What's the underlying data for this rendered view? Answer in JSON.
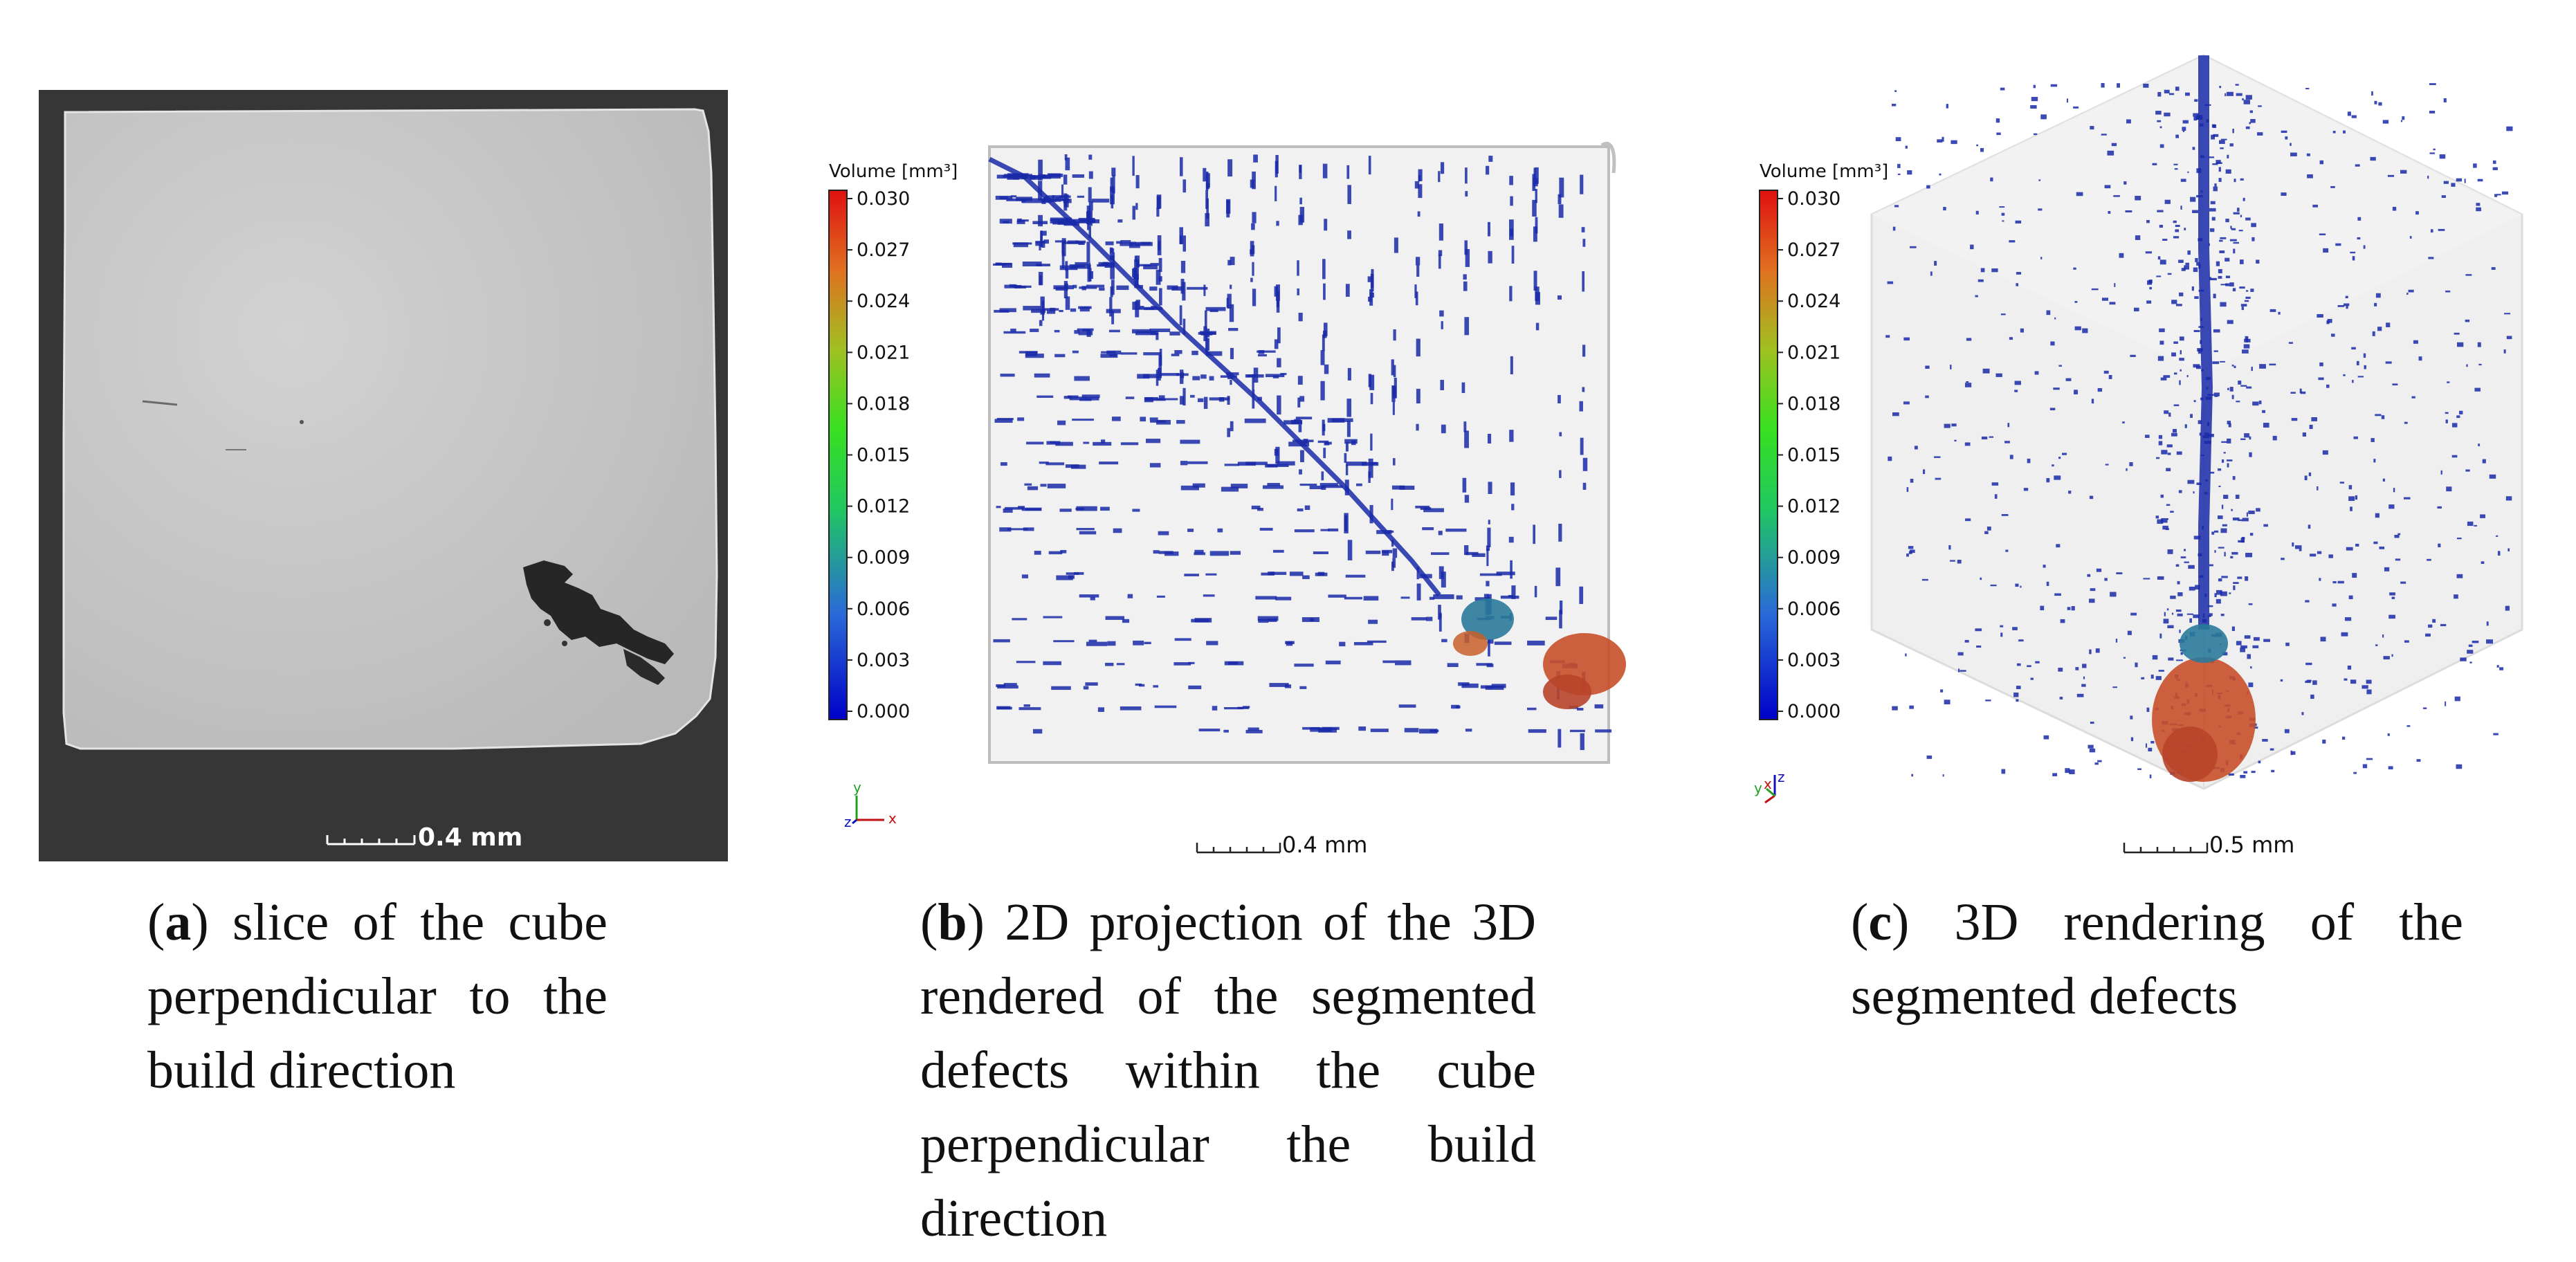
{
  "panel_a": {
    "scale_label": "0.4 mm",
    "caption_letter": "a",
    "caption_text": "slice of the cube perpendicular to the build direction"
  },
  "panel_b": {
    "colorbar_title": "Volume [mm³]",
    "colorbar_ticks": [
      "0.030",
      "0.027",
      "0.024",
      "0.021",
      "0.018",
      "0.015",
      "0.012",
      "0.009",
      "0.006",
      "0.003",
      "0.000"
    ],
    "axes": {
      "y": "y",
      "z": "z",
      "x": "x"
    },
    "scale_label": "0.4 mm",
    "caption_letter": "b",
    "caption_text": "2D projection of the 3D rendered of the segmented defects within the cube perpendicular the build direction"
  },
  "panel_c": {
    "colorbar_title": "Volume [mm³]",
    "colorbar_ticks": [
      "0.030",
      "0.027",
      "0.024",
      "0.021",
      "0.018",
      "0.015",
      "0.012",
      "0.009",
      "0.006",
      "0.003",
      "0.000"
    ],
    "axes": {
      "y": "y",
      "x": "x",
      "z": "z"
    },
    "scale_label": "0.5 mm",
    "caption_letter": "c",
    "caption_text": "3D rendering of the segmented defects"
  },
  "colors": {
    "defect_blue": "#1a2aa8",
    "defect_red": "#c8502a",
    "ct_dark": "#3a3a3a",
    "ct_light": "#c9c9c9"
  }
}
